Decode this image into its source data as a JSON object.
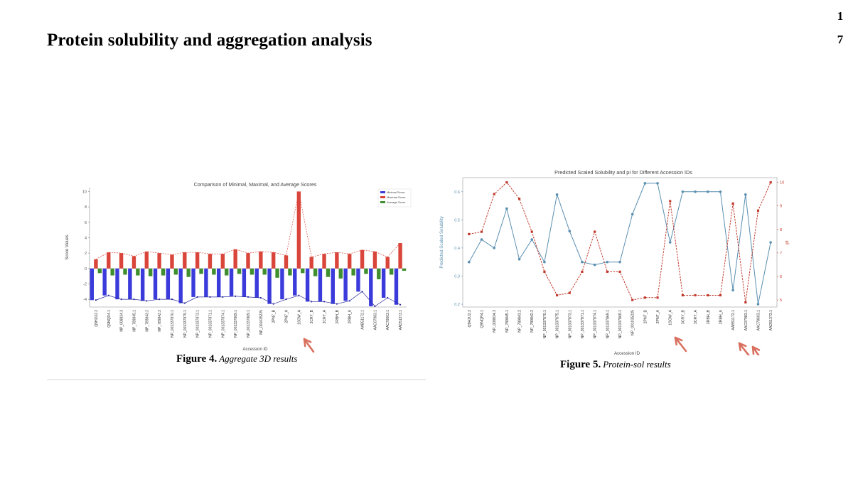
{
  "page": {
    "number_line1": "1",
    "number_line2": "7"
  },
  "section_title": "Protein solubility and aggregation analysis",
  "figure4": {
    "label": "Figure 4.",
    "caption": "Aggregate 3D results"
  },
  "figure5": {
    "label": "Figure 5.",
    "caption": "Protein-sol results"
  },
  "colors": {
    "min": "#3b3bdc",
    "max": "#d9453a",
    "avg": "#3f8f2f",
    "sol": "#5a8fb0",
    "pi": "#c0392b",
    "arrow": "#d9705f"
  },
  "chart_data": [
    {
      "type": "bar",
      "title": "Comparison of Minimal, Maximal, and Average Scores",
      "xlabel": "Accession ID",
      "ylabel": "Score Values",
      "ylim": [
        -5,
        10.5
      ],
      "yticks": [
        -4,
        -2,
        0,
        2,
        4,
        6,
        8,
        10
      ],
      "legend_position": "top-right",
      "grid": false,
      "categories": [
        "Q9H2U2.2",
        "Q9NQR4.1",
        "NP_008834.3",
        "NP_789845.1",
        "NP_789843.2",
        "NP_789842.2",
        "NP_001337870.1",
        "NP_001337875.1",
        "NP_001337873.1",
        "NP_001337871.1",
        "NP_001337874.1",
        "NP_001337869.1",
        "NP_001337869.1",
        "NP_001035225",
        "2PN7_B",
        "2PN7_A",
        "1SOW_A",
        "3CRY_B",
        "3CRY_A",
        "2RBH_B",
        "2RBH_A",
        "AAB51172.1",
        "AAC07983.1",
        "AAC78603.1",
        "AAD51373.1"
      ],
      "series": [
        {
          "name": "Minimal Score",
          "values": [
            -4.1,
            -3.5,
            -4.0,
            -4.0,
            -4.2,
            -4.0,
            -4.0,
            -4.5,
            -3.7,
            -3.7,
            -3.7,
            -3.6,
            -3.7,
            -3.8,
            -4.6,
            -4.0,
            -3.5,
            -4.3,
            -4.3,
            -4.6,
            -4.2,
            -3.0,
            -4.9,
            -3.8,
            -4.7
          ]
        },
        {
          "name": "Maximal Score",
          "values": [
            1.2,
            2.1,
            2.0,
            1.6,
            2.2,
            2.0,
            1.8,
            2.1,
            2.1,
            1.9,
            1.9,
            2.5,
            2.0,
            2.2,
            2.1,
            1.7,
            10.0,
            1.5,
            1.9,
            2.1,
            1.9,
            2.4,
            2.2,
            1.5,
            3.3
          ]
        },
        {
          "name": "Average Score",
          "values": [
            -0.6,
            -0.9,
            -0.8,
            -0.9,
            -1.0,
            -0.9,
            -0.8,
            -1.1,
            -0.7,
            -0.8,
            -0.9,
            -0.7,
            -0.8,
            -0.8,
            -1.2,
            -0.9,
            -0.6,
            -1.0,
            -1.1,
            -1.3,
            -0.9,
            -0.7,
            -1.4,
            -0.8,
            -0.3
          ]
        }
      ]
    },
    {
      "type": "line",
      "title": "Predicted Scaled Solubility and pI for Different Accession IDs",
      "xlabel": "Accession ID",
      "ylabel": "Predicted Scaled Solubility",
      "y2label": "pI",
      "ylim": [
        0.19,
        0.65
      ],
      "y2lim": [
        4.7,
        10.2
      ],
      "yticks": [
        0.2,
        0.3,
        0.4,
        0.5,
        0.6
      ],
      "y2ticks": [
        5,
        6,
        7,
        8,
        9,
        10
      ],
      "grid": false,
      "categories": [
        "Q9H2U2.2",
        "Q9NQR4.1",
        "NP_008834.3",
        "NP_789845.1",
        "NP_789843.2",
        "NP_789842.2",
        "NP_001337870.1",
        "NP_001337875.1",
        "NP_001337873.1",
        "NP_001337871.1",
        "NP_001337874.1",
        "NP_001337869.1",
        "NP_001337869.1",
        "NP_001035225",
        "2PN7_B",
        "2PN7_A",
        "1SOW_A",
        "3CRY_B",
        "3CRY_A",
        "2RBH_B",
        "2RBH_A",
        "AAB51172.1",
        "AAC07983.1",
        "AAC78603.1",
        "AAD51373.1"
      ],
      "series": [
        {
          "axis": "left",
          "values": [
            0.35,
            0.43,
            0.4,
            0.54,
            0.36,
            0.43,
            0.35,
            0.59,
            0.46,
            0.35,
            0.34,
            0.35,
            0.35,
            0.52,
            0.63,
            0.63,
            0.42,
            0.6,
            0.6,
            0.6,
            0.6,
            0.25,
            0.59,
            0.2,
            0.42
          ]
        },
        {
          "axis": "right",
          "values": [
            7.8,
            7.9,
            9.5,
            10.0,
            9.3,
            7.9,
            6.2,
            5.2,
            5.3,
            6.2,
            7.9,
            6.2,
            6.2,
            5.0,
            5.1,
            5.1,
            9.2,
            5.2,
            5.2,
            5.2,
            5.2,
            9.1,
            4.9,
            8.8,
            10.0
          ]
        }
      ]
    }
  ]
}
